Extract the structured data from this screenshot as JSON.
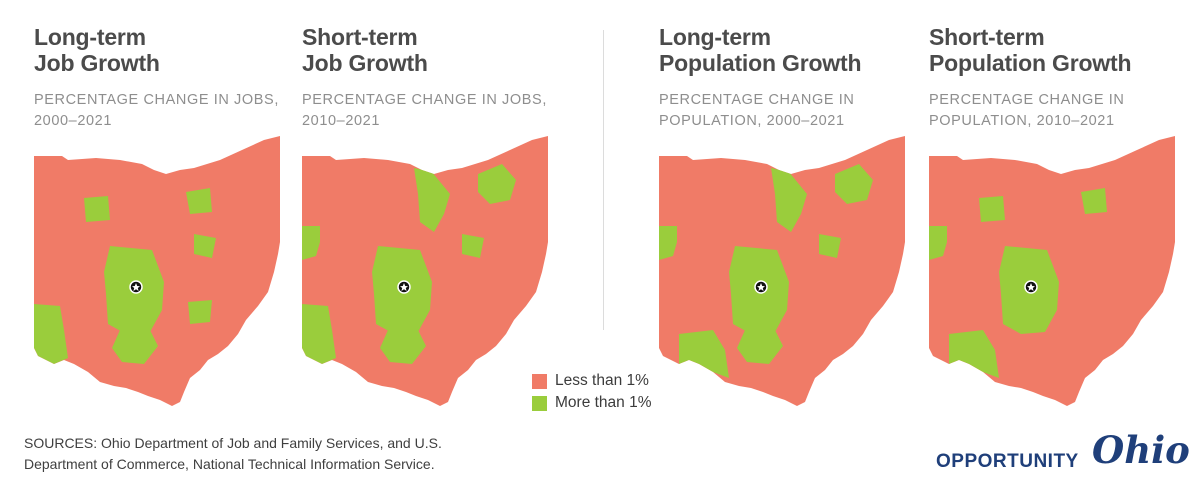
{
  "colors": {
    "less": "#f07b67",
    "more": "#9acd3c",
    "capital_marker": "#111111"
  },
  "panels": [
    {
      "title_line1": "Long-term",
      "title_line2": "Job Growth",
      "subtitle_line1": "PERCENTAGE CHANGE IN JOBS,",
      "subtitle_line2": "2000–2021",
      "green_regions": [
        "west-central",
        "central",
        "central-south",
        "northwest-pocket",
        "northeast-pocket",
        "east-central",
        "southeast-pocket"
      ]
    },
    {
      "title_line1": "Short-term",
      "title_line2": "Job Growth",
      "subtitle_line1": "PERCENTAGE CHANGE IN JOBS,",
      "subtitle_line2": "2010–2021",
      "green_regions": [
        "west",
        "west-central",
        "central",
        "central-south",
        "north-central",
        "northeast",
        "east-central"
      ]
    },
    {
      "title_line1": "Long-term",
      "title_line2": "Population Growth",
      "subtitle_line1": "PERCENTAGE CHANGE IN",
      "subtitle_line2": "POPULATION, 2000–2021",
      "green_regions": [
        "west",
        "southwest",
        "central",
        "central-south",
        "north-central",
        "northeast",
        "east-central"
      ]
    },
    {
      "title_line1": "Short-term",
      "title_line2": "Population Growth",
      "subtitle_line1": "PERCENTAGE CHANGE IN",
      "subtitle_line2": "POPULATION, 2010–2021",
      "green_regions": [
        "west",
        "southwest",
        "central",
        "northwest-pocket",
        "northeast-pocket"
      ]
    }
  ],
  "legend": [
    {
      "label": "Less than 1%",
      "color": "#f07b67"
    },
    {
      "label": "More than 1%",
      "color": "#9acd3c"
    }
  ],
  "sources": {
    "line1": "SOURCES: Ohio Department of Job and Family Services, and U.S.",
    "line2": "Department of Commerce, National Technical Information Service."
  },
  "brand": {
    "word": "OPPORTUNITY",
    "script": "Ohio"
  }
}
